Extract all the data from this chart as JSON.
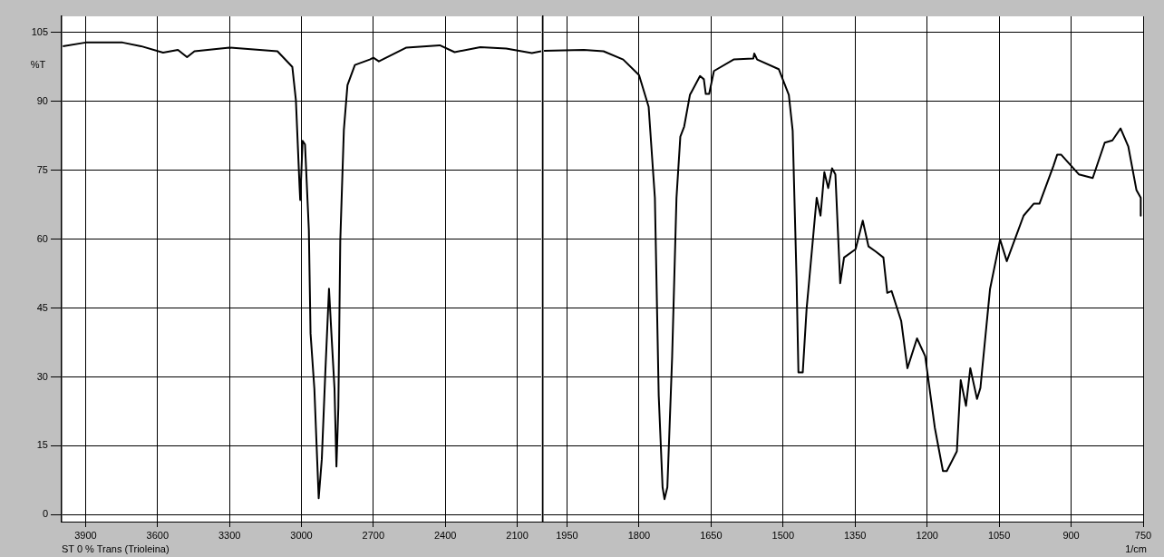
{
  "chart_data": [
    {
      "type": "line",
      "ylabel": "%T",
      "annotations": [
        "ST 0 % Trans (Trioleina)"
      ],
      "marker": "none",
      "grid": true,
      "xlim": [
        4000,
        2000
      ],
      "xticks": [
        3900,
        3600,
        3300,
        3000,
        2700,
        2400,
        2100
      ],
      "ylim": [
        -1.5,
        108.5
      ],
      "yticks": [
        0,
        15,
        30,
        45,
        60,
        75,
        90,
        105
      ],
      "series": [
        {
          "color": "#000000",
          "x": [
            3995,
            3900,
            3746,
            3669,
            3577,
            3515,
            3477,
            3446,
            3300,
            3100,
            3038,
            3023,
            3008,
            3005,
            2995,
            2985,
            2969,
            2962,
            2946,
            2928,
            2915,
            2900,
            2885,
            2875,
            2862,
            2854,
            2846,
            2838,
            2823,
            2808,
            2777,
            2715,
            2700,
            2677,
            2562,
            2423,
            2361,
            2254,
            2146,
            2039,
            2000
          ],
          "values": [
            102,
            102.8,
            102.8,
            102,
            100.6,
            101.2,
            99.6,
            100.9,
            101.7,
            100.9,
            97.5,
            90.2,
            71.7,
            68.5,
            81.4,
            80.6,
            62,
            39.5,
            27.4,
            3.6,
            12.1,
            31.4,
            49.2,
            39.5,
            27.4,
            10.5,
            23.4,
            59.6,
            83.8,
            93.5,
            97.9,
            99.1,
            99.5,
            98.7,
            101.7,
            102.2,
            100.7,
            101.8,
            101.5,
            100.5,
            100.9
          ]
        }
      ]
    },
    {
      "type": "line",
      "xlabel": "1/cm",
      "marker": "none",
      "grid": true,
      "tick_labels": "x",
      "xlim": [
        2000,
        750
      ],
      "xticks": [
        1950,
        1800,
        1650,
        1500,
        1350,
        1200,
        1050,
        900,
        750
      ],
      "ylim": [
        -1.5,
        108.5
      ],
      "yticks": [
        0,
        15,
        30,
        45,
        60,
        75,
        90,
        105
      ],
      "series": [
        {
          "color": "#000000",
          "x": [
            1998,
            1915,
            1874,
            1833,
            1800,
            1780,
            1767,
            1759,
            1751,
            1747,
            1741,
            1731,
            1722,
            1714,
            1706,
            1694,
            1673,
            1665,
            1661,
            1654,
            1644,
            1603,
            1562,
            1560,
            1554,
            1509,
            1488,
            1480,
            1472,
            1468,
            1459,
            1451,
            1430,
            1422,
            1414,
            1406,
            1398,
            1391,
            1381,
            1373,
            1349,
            1334,
            1322,
            1307,
            1291,
            1283,
            1274,
            1254,
            1241,
            1221,
            1204,
            1184,
            1167,
            1159,
            1138,
            1130,
            1119,
            1110,
            1096,
            1089,
            1069,
            1048,
            1034,
            999,
            978,
            966,
            937,
            929,
            921,
            884,
            855,
            830,
            814,
            797,
            781,
            764,
            755,
            755
          ],
          "values": [
            101,
            101.2,
            100.9,
            99.1,
            95.7,
            88.8,
            69,
            25.9,
            6,
            3.4,
            6,
            34.5,
            69,
            82.3,
            84.5,
            91.4,
            95.5,
            94.8,
            91.6,
            91.6,
            96.6,
            99.1,
            99.3,
            100.4,
            99.1,
            97,
            91.4,
            83.6,
            51.7,
            31,
            31,
            44.8,
            69,
            65.1,
            74.6,
            71.1,
            75.4,
            74.1,
            50.4,
            56,
            57.8,
            64,
            58.4,
            57.3,
            56,
            48.3,
            48.7,
            42.2,
            31.9,
            38.4,
            34.5,
            19,
            9.5,
            9.5,
            13.8,
            29.3,
            23.7,
            31.9,
            25.2,
            27.6,
            49.1,
            59.9,
            55.2,
            65.1,
            67.7,
            67.7,
            75.9,
            78.4,
            78.4,
            74.1,
            73.3,
            81,
            81.5,
            84.1,
            80.2,
            70.7,
            69,
            65.1
          ]
        }
      ]
    }
  ]
}
